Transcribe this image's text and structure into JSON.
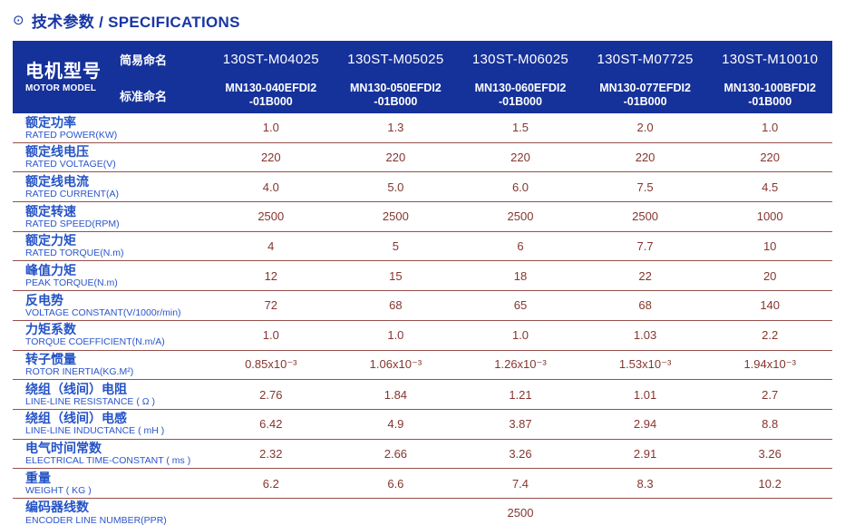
{
  "title": {
    "icon": "⊙",
    "text": "技术参数 / SPECIFICATIONS"
  },
  "table": {
    "header": {
      "model_label_zh": "电机型号",
      "model_label_en": "MOTOR MODEL",
      "simple_name_label": "简易命名",
      "standard_name_label": "标准命名",
      "columns": [
        {
          "simple": "130ST-M04025",
          "standard_line1": "MN130-040EFDI2",
          "standard_line2": "-01B000"
        },
        {
          "simple": "130ST-M05025",
          "standard_line1": "MN130-050EFDI2",
          "standard_line2": "-01B000"
        },
        {
          "simple": "130ST-M06025",
          "standard_line1": "MN130-060EFDI2",
          "standard_line2": "-01B000"
        },
        {
          "simple": "130ST-M07725",
          "standard_line1": "MN130-077EFDI2",
          "standard_line2": "-01B000"
        },
        {
          "simple": "130ST-M10010",
          "standard_line1": "MN130-100BFDI2",
          "standard_line2": "-01B000"
        }
      ]
    },
    "rows": [
      {
        "zh": "额定功率",
        "en": "RATED POWER(KW)",
        "values": [
          "1.0",
          "1.3",
          "1.5",
          "2.0",
          "1.0"
        ]
      },
      {
        "zh": "额定线电压",
        "en": "RATED VOLTAGE(V)",
        "values": [
          "220",
          "220",
          "220",
          "220",
          "220"
        ]
      },
      {
        "zh": "额定线电流",
        "en": "RATED CURRENT(A)",
        "values": [
          "4.0",
          "5.0",
          "6.0",
          "7.5",
          "4.5"
        ]
      },
      {
        "zh": "额定转速",
        "en": "RATED SPEED(RPM)",
        "values": [
          "2500",
          "2500",
          "2500",
          "2500",
          "1000"
        ]
      },
      {
        "zh": "额定力矩",
        "en": "RATED TORQUE(N.m)",
        "values": [
          "4",
          "5",
          "6",
          "7.7",
          "10"
        ]
      },
      {
        "zh": "峰值力矩",
        "en": "PEAK TORQUE(N.m)",
        "values": [
          "12",
          "15",
          "18",
          "22",
          "20"
        ]
      },
      {
        "zh": "反电势",
        "en": "VOLTAGE CONSTANT(V/1000r/min)",
        "values": [
          "72",
          "68",
          "65",
          "68",
          "140"
        ]
      },
      {
        "zh": "力矩系数",
        "en": "TORQUE COEFFICIENT(N.m/A)",
        "values": [
          "1.0",
          "1.0",
          "1.0",
          "1.03",
          "2.2"
        ]
      },
      {
        "zh": "转子惯量",
        "en": "ROTOR INERTIA(KG.M²)",
        "values": [
          "0.85x10⁻³",
          "1.06x10⁻³",
          "1.26x10⁻³",
          "1.53x10⁻³",
          "1.94x10⁻³"
        ]
      },
      {
        "zh": "绕组（线间）电阻",
        "en": "LINE-LINE RESISTANCE ( Ω )",
        "values": [
          "2.76",
          "1.84",
          "1.21",
          "1.01",
          "2.7"
        ]
      },
      {
        "zh": "绕组（线间）电感",
        "en": "LINE-LINE INDUCTANCE ( mH )",
        "values": [
          "6.42",
          "4.9",
          "3.87",
          "2.94",
          "8.8"
        ]
      },
      {
        "zh": "电气时间常数",
        "en": "ELECTRICAL TIME-CONSTANT ( ms )",
        "values": [
          "2.32",
          "2.66",
          "3.26",
          "2.91",
          "3.26"
        ]
      },
      {
        "zh": "重量",
        "en": "WEIGHT ( KG )",
        "values": [
          "6.2",
          "6.6",
          "7.4",
          "8.3",
          "10.2"
        ]
      },
      {
        "zh": "编码器线数",
        "en": "ENCODER LINE NUMBER(PPR)",
        "span_value": "2500"
      }
    ]
  },
  "colors": {
    "header_blue": "#15319a",
    "title_blue": "#1836a4",
    "label_blue": "#2453c6",
    "value_maroon": "#84362e",
    "separator_maroon": "#95504c"
  }
}
